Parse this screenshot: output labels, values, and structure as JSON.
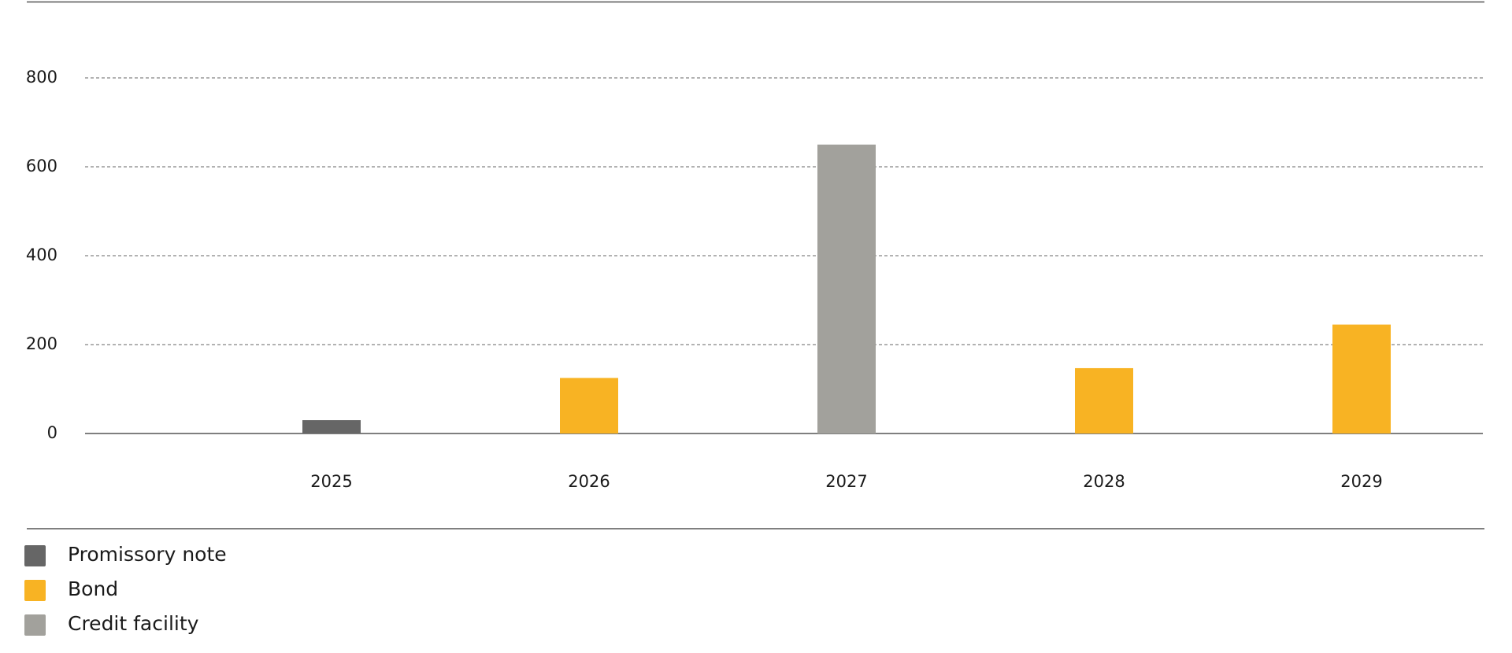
{
  "chart_data": {
    "type": "bar",
    "categories": [
      "2025",
      "2026",
      "2027",
      "2028",
      "2029"
    ],
    "series": [
      {
        "name": "Promissory note",
        "color": "#666666",
        "values": [
          30,
          null,
          null,
          null,
          null
        ]
      },
      {
        "name": "Bond",
        "color": "#f8b323",
        "values": [
          null,
          125,
          null,
          147,
          245
        ]
      },
      {
        "name": "Credit facility",
        "color": "#a2a19c",
        "values": [
          null,
          null,
          650,
          null,
          null
        ]
      }
    ],
    "ylim": [
      0,
      800
    ],
    "yticks": [
      0,
      200,
      400,
      600,
      800
    ],
    "grid": true,
    "legend": "bottom-left"
  }
}
